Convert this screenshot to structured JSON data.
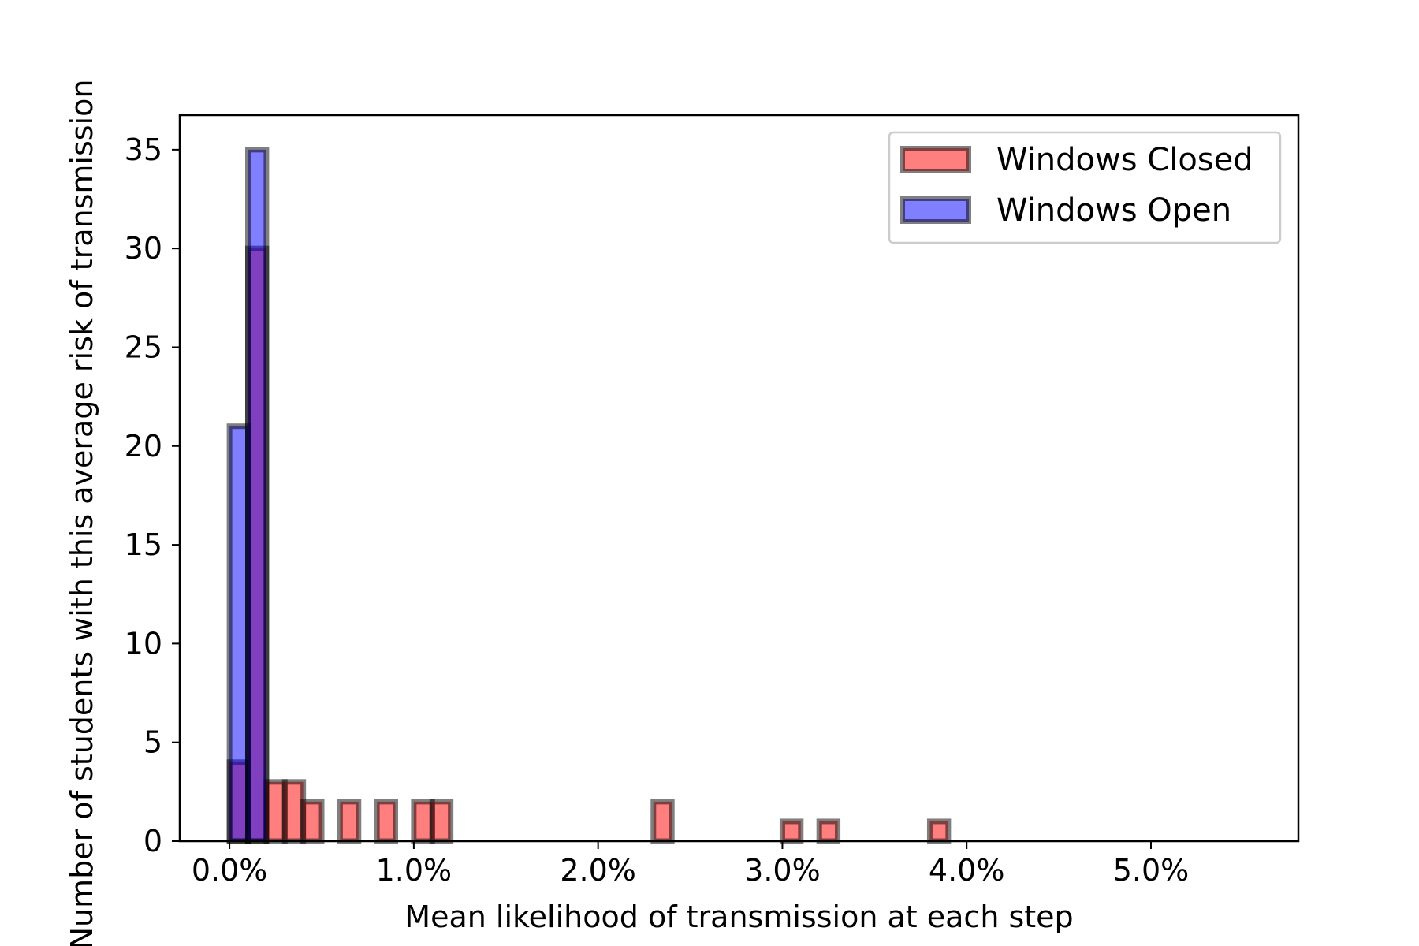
{
  "chart_data": {
    "type": "bar",
    "title": "",
    "xlabel": "Mean likelihood of transmission at each step",
    "ylabel": "Number of students with this average risk of transmission",
    "xlim": [
      -0.0027,
      0.058
    ],
    "ylim": [
      0,
      36.75
    ],
    "x_ticks": [
      0.0,
      0.01,
      0.02,
      0.03,
      0.04,
      0.05
    ],
    "x_tick_labels": [
      "0.0%",
      "1.0%",
      "2.0%",
      "3.0%",
      "4.0%",
      "5.0%"
    ],
    "y_ticks": [
      0,
      5,
      10,
      15,
      20,
      25,
      30,
      35
    ],
    "y_tick_labels": [
      "0",
      "5",
      "10",
      "15",
      "20",
      "25",
      "30",
      "35"
    ],
    "bin_edges": [
      0.0,
      0.001,
      0.002,
      0.003,
      0.004,
      0.005,
      0.006,
      0.007,
      0.008,
      0.009,
      0.01,
      0.011,
      0.012,
      0.013,
      0.014,
      0.015,
      0.016,
      0.017,
      0.018,
      0.019,
      0.02,
      0.021,
      0.022,
      0.023,
      0.024,
      0.025,
      0.026,
      0.027,
      0.028,
      0.029,
      0.03,
      0.031,
      0.032,
      0.033,
      0.034,
      0.035,
      0.036,
      0.037,
      0.038,
      0.039,
      0.04,
      0.041,
      0.042,
      0.043,
      0.044,
      0.045,
      0.046,
      0.047,
      0.048,
      0.049,
      0.05,
      0.051,
      0.052,
      0.053,
      0.054,
      0.055
    ],
    "series": [
      {
        "name": "Windows Closed",
        "color": "#ff0000",
        "alpha": 0.5,
        "values": [
          4,
          30,
          3,
          3,
          2,
          0,
          2,
          0,
          2,
          0,
          2,
          2,
          0,
          0,
          0,
          0,
          0,
          0,
          0,
          0,
          0,
          0,
          0,
          2,
          0,
          0,
          0,
          0,
          0,
          0,
          1,
          0,
          1,
          0,
          0,
          0,
          0,
          0,
          1,
          0,
          0,
          0,
          0,
          0,
          0,
          0,
          0,
          0,
          0,
          0,
          0,
          0,
          0,
          0,
          0
        ]
      },
      {
        "name": "Windows Open",
        "color": "#0000ff",
        "alpha": 0.5,
        "values": [
          21,
          35,
          0,
          0,
          0,
          0,
          0,
          0,
          0,
          0,
          0,
          0,
          0,
          0,
          0,
          0,
          0,
          0,
          0,
          0,
          0,
          0,
          0,
          0,
          0,
          0,
          0,
          0,
          0,
          0,
          0,
          0,
          0,
          0,
          0,
          0,
          0,
          0,
          0,
          0,
          0,
          0,
          0,
          0,
          0,
          0,
          0,
          0,
          0,
          0,
          0,
          0,
          0,
          0,
          0
        ]
      }
    ],
    "legend": {
      "position": "top-right",
      "entries": [
        "Windows Closed",
        "Windows Open"
      ]
    },
    "grid": false
  }
}
